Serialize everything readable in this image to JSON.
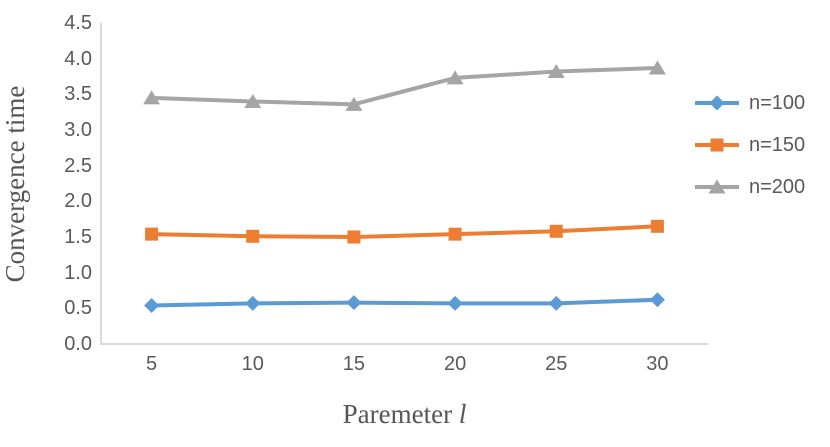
{
  "chart_data": {
    "type": "line",
    "title": "",
    "ylabel": "Convergence time",
    "xlabel": "Paremeter l",
    "xlabel_text": "Paremeter",
    "xlabel_var": "l",
    "categories": [
      "5",
      "10",
      "15",
      "20",
      "25",
      "30"
    ],
    "yticks": [
      "0.0",
      "0.5",
      "1.0",
      "1.5",
      "2.0",
      "2.5",
      "3.0",
      "3.5",
      "4.0",
      "4.5"
    ],
    "ylim": [
      0,
      4.5
    ],
    "grid": false,
    "legend_position": "right",
    "series": [
      {
        "name": "n=100",
        "marker": "diamond",
        "color": "#5B9BD5",
        "values": [
          0.54,
          0.57,
          0.58,
          0.57,
          0.57,
          0.62
        ]
      },
      {
        "name": "n=150",
        "marker": "square",
        "color": "#ED7D31",
        "values": [
          1.54,
          1.51,
          1.5,
          1.54,
          1.58,
          1.65
        ]
      },
      {
        "name": "n=200",
        "marker": "triangle",
        "color": "#A5A5A5",
        "values": [
          3.45,
          3.4,
          3.36,
          3.73,
          3.82,
          3.87
        ]
      }
    ]
  },
  "colors": {
    "axis_line": "#D9D9D9",
    "tick_text": "#595959",
    "title_text": "#565656",
    "background": "#FFFFFF"
  }
}
